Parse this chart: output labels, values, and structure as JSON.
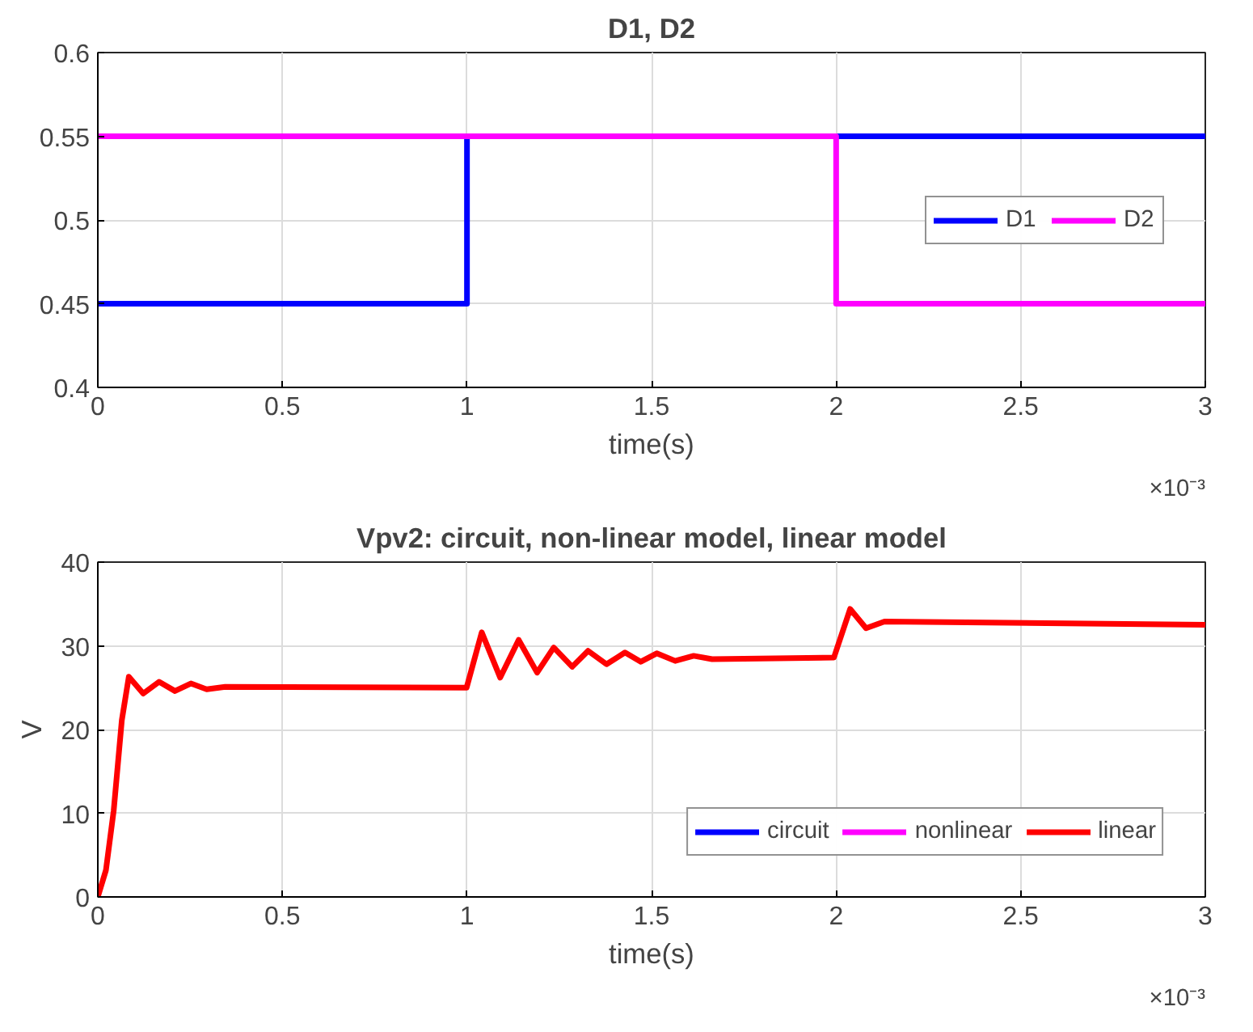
{
  "chart_data": [
    {
      "type": "step",
      "title": "D1, D2",
      "xlabel": "time(s)",
      "annotations": [
        "×10⁻³"
      ],
      "x": [
        0,
        1,
        2,
        3
      ],
      "series": [
        {
          "name": "D1",
          "color": "#0000ff",
          "values": [
            0.45,
            0.55,
            0.55,
            0.55
          ]
        },
        {
          "name": "D2",
          "color": "#ff00ff",
          "values": [
            0.55,
            0.55,
            0.45,
            0.45
          ]
        }
      ],
      "xlim": [
        0,
        3
      ],
      "xticks": [
        0,
        0.5,
        1,
        1.5,
        2,
        2.5,
        3
      ],
      "ylim": [
        0.4,
        0.6
      ],
      "yticks": [
        0.4,
        0.45,
        0.5,
        0.55,
        0.6
      ],
      "grid": true,
      "legend": "right"
    },
    {
      "type": "line",
      "title": "Vpv2: circuit, non-linear model, linear model",
      "xlabel": "time(s)",
      "ylabel": "V",
      "annotations": [
        "×10⁻³"
      ],
      "x": [
        0,
        0.022,
        0.043,
        0.065,
        0.084,
        0.123,
        0.166,
        0.209,
        0.252,
        0.295,
        0.345,
        0.999,
        1.04,
        1.09,
        1.14,
        1.19,
        1.235,
        1.285,
        1.328,
        1.378,
        1.428,
        1.471,
        1.514,
        1.564,
        1.614,
        1.664,
        1.994,
        2.038,
        2.081,
        2.131,
        3
      ],
      "series": [
        {
          "name": "circuit",
          "color": "#0000ff",
          "values": [
            null,
            null,
            null,
            null,
            null,
            null,
            null,
            null,
            null,
            null,
            null,
            null,
            null,
            null,
            null,
            null,
            null,
            null,
            null,
            null,
            null,
            null,
            null,
            null,
            null,
            null,
            null,
            null,
            null,
            null,
            null
          ]
        },
        {
          "name": "nonlinear",
          "color": "#ff00ff",
          "values": [
            null,
            null,
            null,
            null,
            null,
            null,
            null,
            null,
            null,
            null,
            null,
            null,
            null,
            null,
            null,
            null,
            null,
            null,
            null,
            null,
            null,
            null,
            null,
            null,
            null,
            null,
            null,
            null,
            null,
            null,
            null
          ]
        },
        {
          "name": "linear",
          "color": "#ff0000",
          "values": [
            0,
            3.2,
            10.3,
            21.1,
            26.3,
            24.3,
            25.7,
            24.6,
            25.5,
            24.8,
            25.1,
            25.0,
            31.6,
            26.2,
            30.7,
            26.8,
            29.8,
            27.5,
            29.4,
            27.8,
            29.2,
            28.1,
            29.1,
            28.2,
            28.8,
            28.4,
            28.6,
            34.4,
            32.1,
            32.9,
            32.5
          ]
        }
      ],
      "xlim": [
        0,
        3
      ],
      "xticks": [
        0,
        0.5,
        1,
        1.5,
        2,
        2.5,
        3
      ],
      "ylim": [
        0,
        40
      ],
      "yticks": [
        0,
        10,
        20,
        30,
        40
      ],
      "grid": true,
      "legend": "bottom right"
    }
  ]
}
